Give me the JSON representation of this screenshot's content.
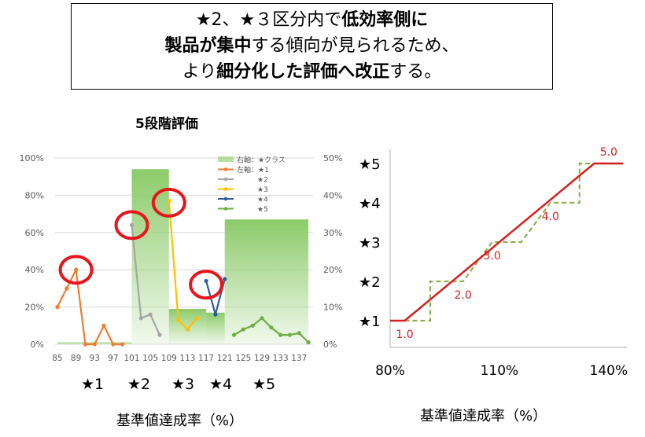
{
  "headline": {
    "line1": [
      {
        "text": "★2、★３区分内で",
        "bold": false
      },
      {
        "text": "低効率側に",
        "bold": true
      }
    ],
    "line2": [
      {
        "text": "製品が集中",
        "bold": true
      },
      {
        "text": "する傾向が見られるため、",
        "bold": false
      }
    ],
    "line3": [
      {
        "text": "より",
        "bold": false
      },
      {
        "text": "細分化した評価へ改正",
        "bold": true
      },
      {
        "text": "する。",
        "bold": false
      }
    ]
  },
  "left_title": "5段階評価",
  "left_stars": [
    "★1",
    "★2",
    "★3",
    "★4",
    "★5"
  ],
  "left_xcaption": "基準値達成率（%）",
  "right_xcaption": "基準値達成率（%）",
  "colors": {
    "star1": "#ED7D31",
    "star2": "#A5A5A5",
    "star3": "#FFC000",
    "star4": "#2E5A9E",
    "star5": "#70AD47",
    "band": "#8CCB6A",
    "circle": "#E8141B",
    "step_line": "#D42020",
    "step_dash": "#8DB04A"
  },
  "chart_data": [
    {
      "type": "line",
      "ylim_left": [
        0,
        100
      ],
      "ylim_right": [
        0,
        50
      ],
      "yticks_left": [
        "0%",
        "20%",
        "40%",
        "60%",
        "80%",
        "100%"
      ],
      "yticks_right": [
        "0%",
        "10%",
        "20%",
        "30%",
        "40%",
        "50%"
      ],
      "xticks": [
        "85",
        "89",
        "93",
        "97",
        "101",
        "105",
        "109",
        "113",
        "117",
        "121",
        "125",
        "129",
        "133",
        "137"
      ],
      "legend": [
        "右軸：★クラス",
        "左軸：★1",
        "★2",
        "★3",
        "★4",
        "★5"
      ],
      "legend_position": "top-right",
      "bands": [
        {
          "name": "★1",
          "x0": 85,
          "x1": 101,
          "value_right_pct": 0.5
        },
        {
          "name": "★2",
          "x0": 101,
          "x1": 109,
          "value_right_pct": 47
        },
        {
          "name": "★3",
          "x0": 109,
          "x1": 117,
          "value_right_pct": 9.5
        },
        {
          "name": "★4",
          "x0": 117,
          "x1": 121,
          "value_right_pct": 8.5
        },
        {
          "name": "★5",
          "x0": 121,
          "x1": 139,
          "value_right_pct": 33.5
        }
      ],
      "series": [
        {
          "name": "★1",
          "x": [
            85,
            87,
            89,
            91,
            93,
            95,
            97,
            99
          ],
          "values": [
            20,
            30,
            40,
            0,
            0,
            10,
            0,
            0
          ]
        },
        {
          "name": "★2",
          "x": [
            101,
            103,
            105,
            107
          ],
          "values": [
            64,
            14,
            16,
            5
          ]
        },
        {
          "name": "★3",
          "x": [
            109,
            111,
            113,
            115
          ],
          "values": [
            77,
            13,
            8,
            14
          ]
        },
        {
          "name": "★4",
          "x": [
            117,
            119,
            121
          ],
          "values": [
            34,
            16,
            35
          ]
        },
        {
          "name": "★5",
          "x": [
            123,
            125,
            127,
            129,
            131,
            133,
            135,
            137,
            139
          ],
          "values": [
            5,
            8,
            10,
            14,
            9,
            5,
            5,
            6,
            1
          ]
        }
      ],
      "highlight_circles_at": [
        {
          "x": 89,
          "y": 40
        },
        {
          "x": 101,
          "y": 64
        },
        {
          "x": 109,
          "y": 76
        },
        {
          "x": 117,
          "y": 32
        }
      ]
    },
    {
      "type": "line",
      "xticks": [
        "80%",
        "110%",
        "140%"
      ],
      "xlim": [
        80,
        145
      ],
      "ylim": [
        0.5,
        5.5
      ],
      "ylabels": [
        "★1",
        "★2",
        "★3",
        "★4",
        "★5"
      ],
      "series": [
        {
          "name": "linear",
          "x": [
            80,
            84,
            136,
            144
          ],
          "values": [
            1.0,
            1.0,
            5.0,
            5.0
          ]
        },
        {
          "name": "steps",
          "x": [
            84,
            91,
            91,
            100,
            100,
            108,
            108,
            116,
            116,
            124,
            124,
            132,
            132,
            144
          ],
          "values": [
            1.0,
            1.0,
            2.0,
            2.0,
            2.0,
            3.0,
            3.0,
            3.0,
            3.0,
            4.0,
            4.0,
            4.0,
            5.0,
            5.0
          ]
        }
      ],
      "annotations": [
        {
          "text": "1.0",
          "x": 84,
          "y": 1.0
        },
        {
          "text": "2.0",
          "x": 100,
          "y": 2.0
        },
        {
          "text": "3.0",
          "x": 108,
          "y": 3.0
        },
        {
          "text": "4.0",
          "x": 124,
          "y": 4.0
        },
        {
          "text": "5.0",
          "x": 140,
          "y": 5.0
        }
      ]
    }
  ]
}
